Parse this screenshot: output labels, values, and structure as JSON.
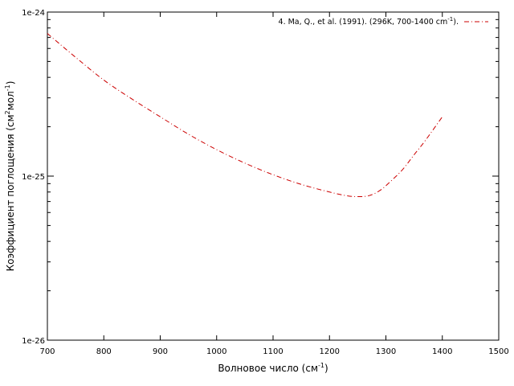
{
  "chart_data": {
    "type": "line",
    "title": "",
    "xlabel": "Волновое число (см",
    "xlabel_sup": "-1",
    "xlabel_end": ")",
    "ylabel": "Коэффициент поглощения (см",
    "ylabel_sup1": "2",
    "ylabel_mid": "мол",
    "ylabel_sup2": "-1",
    "ylabel_end": ")",
    "xlim": [
      700,
      1500
    ],
    "ylim": [
      1e-26,
      1e-24
    ],
    "yscale": "log",
    "x_ticks": [
      700,
      800,
      900,
      1000,
      1100,
      1200,
      1300,
      1400,
      1500
    ],
    "x_tick_labels": [
      "700",
      "800",
      "900",
      "1000",
      "1100",
      "1200",
      "1300",
      "1400",
      "1500"
    ],
    "y_ticks": [
      1e-26,
      1e-25,
      1e-24
    ],
    "y_tick_labels": [
      "1e-26",
      "1e-25",
      "1e-24"
    ],
    "grid": false,
    "legend_position": "top-right",
    "series": [
      {
        "name": "4. Ma, Q., et al. (1991). (296K, 700-1400 cm",
        "name_sup": "-1",
        "name_end": ").",
        "color": "#cc0000",
        "style": "dash-dot",
        "x": [
          700,
          750,
          800,
          850,
          900,
          950,
          1000,
          1050,
          1100,
          1150,
          1200,
          1230,
          1250,
          1270,
          1290,
          1310,
          1330,
          1350,
          1370,
          1400
        ],
        "y": [
          7.4e-25,
          5.3e-25,
          3.85e-25,
          2.95e-25,
          2.3e-25,
          1.8e-25,
          1.45e-25,
          1.2e-25,
          1.02e-25,
          8.9e-26,
          8e-26,
          7.6e-26,
          7.5e-26,
          7.6e-26,
          8.2e-26,
          9.4e-26,
          1.1e-25,
          1.35e-25,
          1.65e-25,
          2.3e-25
        ]
      }
    ]
  }
}
